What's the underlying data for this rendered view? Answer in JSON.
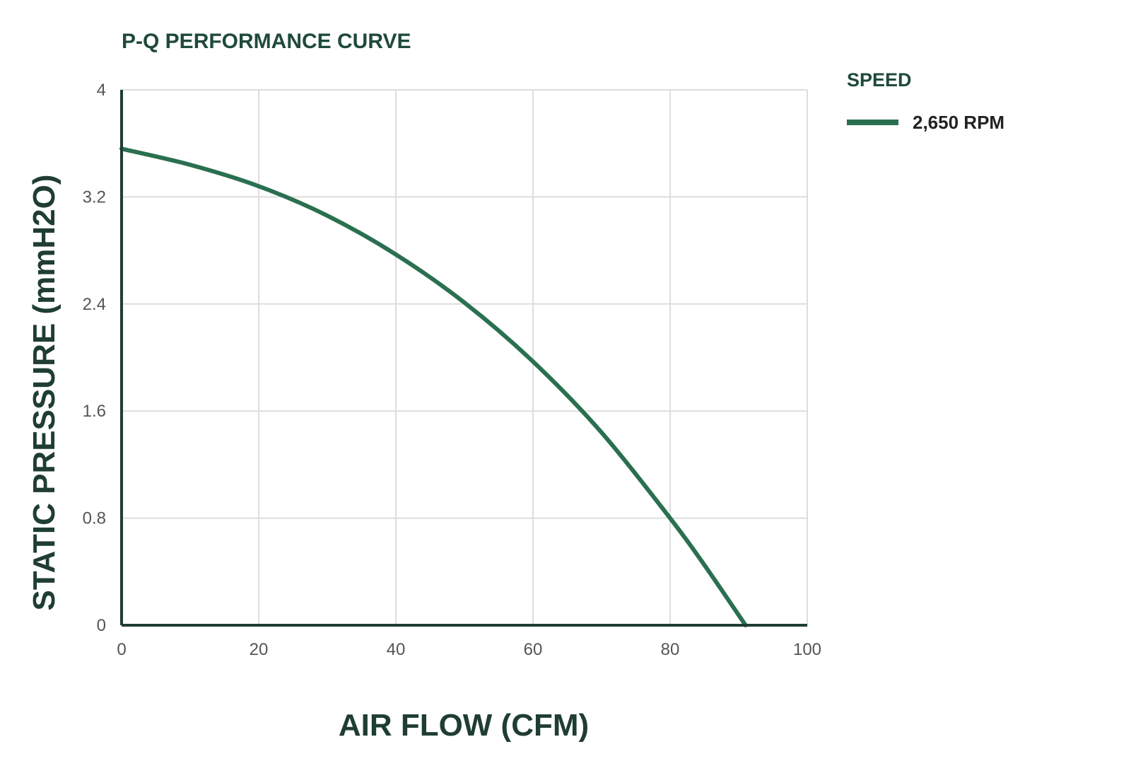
{
  "chart_data": {
    "type": "line",
    "title": "P-Q PERFORMANCE CURVE",
    "xlabel": "AIR FLOW (CFM)",
    "ylabel": "STATIC PRESSURE (mmH2O)",
    "xlim": [
      0,
      100
    ],
    "ylim": [
      0,
      4
    ],
    "xticks": [
      "0",
      "20",
      "40",
      "60",
      "80",
      "100"
    ],
    "yticks": [
      "0",
      "0.8",
      "1.6",
      "2.4",
      "3.2",
      "4"
    ],
    "grid": true,
    "legend": {
      "title": "SPEED",
      "position": "right"
    },
    "series": [
      {
        "name": "2,650 RPM",
        "color": "#2a7050",
        "x": [
          0,
          10,
          20,
          30,
          40,
          50,
          60,
          70,
          80,
          85,
          91
        ],
        "y": [
          3.56,
          3.44,
          3.28,
          3.06,
          2.77,
          2.41,
          1.97,
          1.44,
          0.8,
          0.45,
          0
        ]
      }
    ]
  }
}
